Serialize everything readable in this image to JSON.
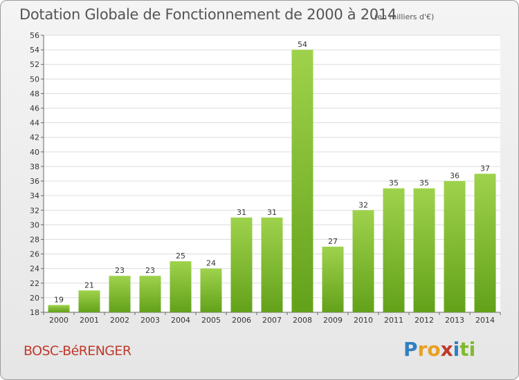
{
  "chart_data": {
    "type": "bar",
    "title": "Dotation Globale de Fonctionnement de 2000 à 2014",
    "subtitle": "(en milliers d'€)",
    "xlabel": "",
    "ylabel": "",
    "categories": [
      "2000",
      "2001",
      "2002",
      "2003",
      "2004",
      "2005",
      "2006",
      "2007",
      "2008",
      "2009",
      "2010",
      "2011",
      "2012",
      "2013",
      "2014"
    ],
    "values": [
      19,
      21,
      23,
      23,
      25,
      24,
      31,
      31,
      54,
      27,
      32,
      35,
      35,
      36,
      37
    ],
    "ylim": [
      18,
      56
    ],
    "ytick_step": 2,
    "grid": true,
    "bar_color": "#7fba2e"
  },
  "footer": {
    "commune": "BOSC-BéRENGER",
    "logo_letters": [
      "P",
      "r",
      "o",
      "x",
      "i",
      "t",
      "i"
    ],
    "logo_colors": [
      "#2f7fc1",
      "#e8a022",
      "#e8a022",
      "#c0392b",
      "#2f7fc1",
      "#7fba2e",
      "#7fba2e"
    ]
  }
}
